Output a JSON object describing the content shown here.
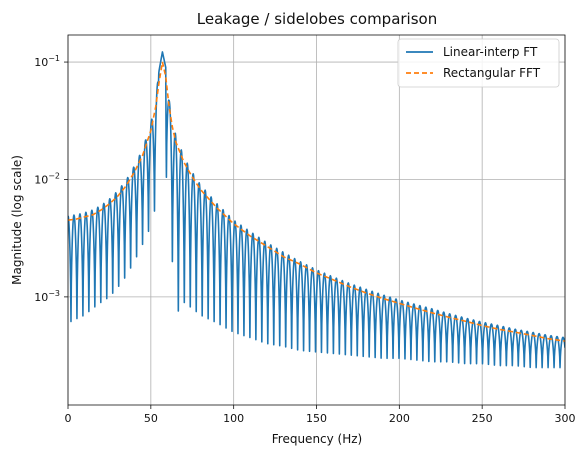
{
  "chart_data": {
    "type": "line",
    "title": "Leakage / sidelobes comparison",
    "xlabel": "Frequency (Hz)",
    "ylabel": "Magnitude (log scale)",
    "xlim": [
      0,
      300
    ],
    "ylim": [
      0.00012,
      0.17
    ],
    "yscale": "log",
    "grid": true,
    "legend_position": "top-right",
    "x_ticks": [
      {
        "value": 0,
        "label": "0"
      },
      {
        "value": 50,
        "label": "50"
      },
      {
        "value": 100,
        "label": "100"
      },
      {
        "value": 150,
        "label": "150"
      },
      {
        "value": 200,
        "label": "200"
      },
      {
        "value": 250,
        "label": "250"
      },
      {
        "value": 300,
        "label": "300"
      }
    ],
    "y_ticks": [
      {
        "value": 0.001,
        "base": "10",
        "exp": "−3"
      },
      {
        "value": 0.01,
        "base": "10",
        "exp": "−2"
      },
      {
        "value": 0.1,
        "base": "10",
        "exp": "−1"
      }
    ],
    "peak_frequency": 57,
    "series": [
      {
        "name": "Linear-interp FT",
        "color": "#1f77b4",
        "style": "solid",
        "x": [
          0,
          5,
          10,
          15,
          20,
          25,
          30,
          35,
          40,
          45,
          50,
          53,
          55,
          57,
          59,
          61,
          63,
          65,
          70,
          75,
          80,
          90,
          100,
          110,
          120,
          130,
          140,
          150,
          160,
          170,
          180,
          190,
          200,
          210,
          220,
          230,
          240,
          250,
          260,
          270,
          280,
          290,
          300
        ],
        "envelope_max": [
          0.0049,
          0.005,
          0.0052,
          0.0055,
          0.006,
          0.0068,
          0.008,
          0.0098,
          0.013,
          0.018,
          0.03,
          0.05,
          0.085,
          0.122,
          0.09,
          0.048,
          0.032,
          0.024,
          0.0155,
          0.0115,
          0.009,
          0.0062,
          0.0045,
          0.0036,
          0.0029,
          0.0024,
          0.002,
          0.0017,
          0.00148,
          0.0013,
          0.00116,
          0.00104,
          0.00094,
          0.00086,
          0.00079,
          0.00072,
          0.00066,
          0.00061,
          0.00057,
          0.00053,
          0.0005,
          0.00047,
          0.00045
        ],
        "envelope_min": [
          0.0006,
          0.00065,
          0.0007,
          0.0008,
          0.0009,
          0.001,
          0.0012,
          0.0015,
          0.002,
          0.0028,
          0.004,
          0.006,
          0.01,
          0.02,
          0.012,
          0.006,
          0.002,
          0.0007,
          0.0009,
          0.0008,
          0.0007,
          0.0006,
          0.0005,
          0.00045,
          0.0004,
          0.00038,
          0.00035,
          0.00034,
          0.00033,
          0.00032,
          0.00031,
          0.0003,
          0.0003,
          0.00029,
          0.00028,
          0.00028,
          0.00027,
          0.00027,
          0.00026,
          0.00026,
          0.00025,
          0.00025,
          0.00025
        ],
        "oscillation_period": 3.6
      },
      {
        "name": "Rectangular FFT",
        "color": "#ff7f0e",
        "style": "dashed",
        "x": [
          0,
          5,
          10,
          15,
          20,
          25,
          30,
          35,
          40,
          45,
          50,
          53,
          55,
          57,
          59,
          61,
          63,
          65,
          70,
          75,
          80,
          90,
          100,
          110,
          120,
          130,
          140,
          150,
          160,
          170,
          180,
          190,
          200,
          210,
          220,
          230,
          240,
          250,
          260,
          270,
          280,
          290,
          300
        ],
        "y": [
          0.0045,
          0.0046,
          0.0048,
          0.005,
          0.0055,
          0.0062,
          0.0072,
          0.0088,
          0.0115,
          0.016,
          0.026,
          0.042,
          0.068,
          0.1,
          0.075,
          0.042,
          0.028,
          0.021,
          0.014,
          0.0105,
          0.0082,
          0.0057,
          0.0042,
          0.0033,
          0.0027,
          0.0022,
          0.0019,
          0.0016,
          0.0014,
          0.00122,
          0.00108,
          0.00097,
          0.00088,
          0.0008,
          0.00073,
          0.00067,
          0.00062,
          0.00057,
          0.00053,
          0.0005,
          0.00047,
          0.00044,
          0.00042
        ]
      }
    ]
  }
}
